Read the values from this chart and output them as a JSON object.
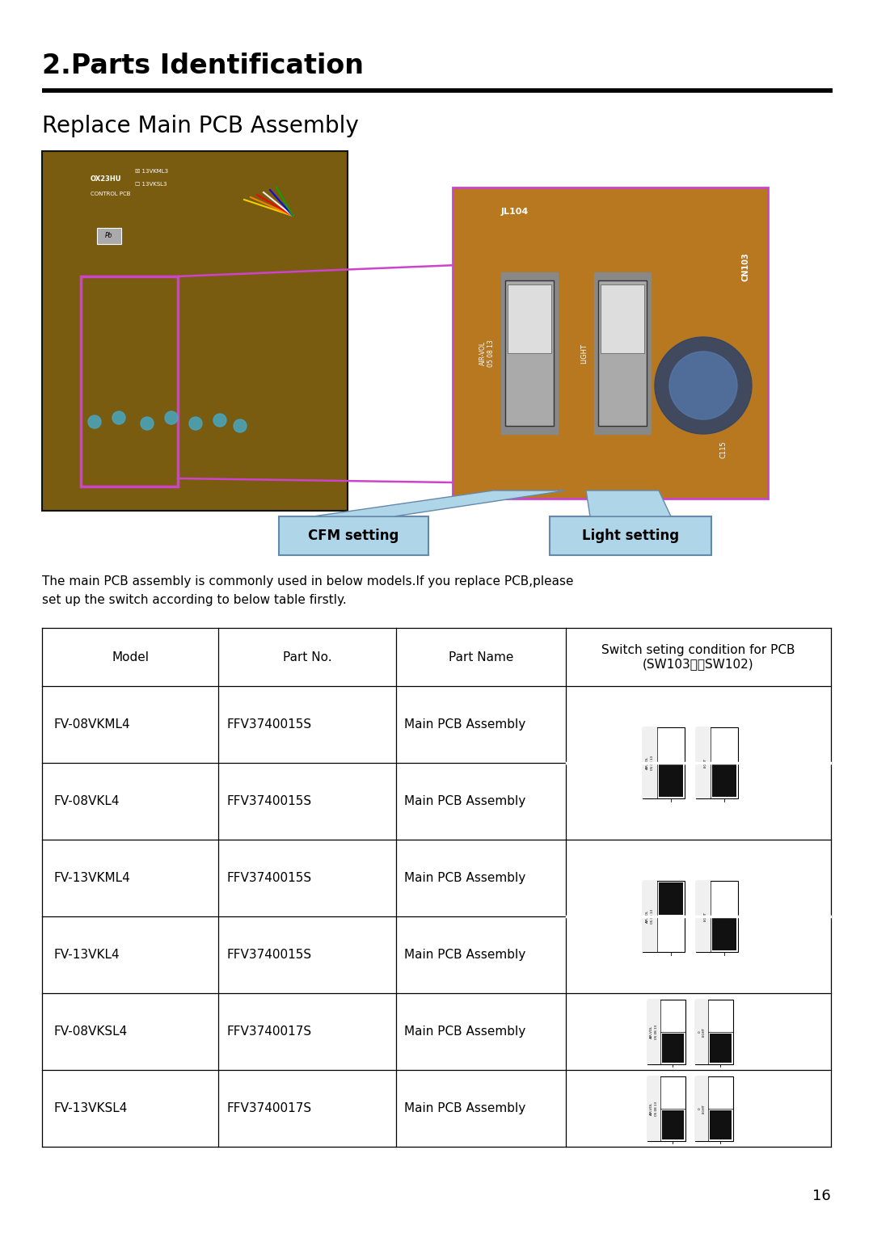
{
  "title": "2.Parts Identification",
  "subtitle": "Replace Main PCB Assembly",
  "description": "The main PCB assembly is commonly used in below models.If you replace PCB,please\nset up the switch according to below table firstly.",
  "cfm_label": "CFM setting",
  "light_label": "Light setting",
  "table_headers": [
    "Model",
    "Part No.",
    "Part Name",
    "Switch seting condition for PCB\n(SW103、　SW102)"
  ],
  "table_rows": [
    [
      "FV-08VKML4",
      "FFV3740015S",
      "Main PCB Assembly",
      "sw_a"
    ],
    [
      "FV-08VKL4",
      "FFV3740015S",
      "Main PCB Assembly",
      ""
    ],
    [
      "FV-13VKML4",
      "FFV3740015S",
      "Main PCB Assembly",
      "sw_b"
    ],
    [
      "FV-13VKL4",
      "FFV3740015S",
      "Main PCB Assembly",
      ""
    ],
    [
      "FV-08VKSL4",
      "FFV3740017S",
      "Main PCB Assembly",
      "sw_c"
    ],
    [
      "FV-13VKSL4",
      "FFV3740017S",
      "Main PCB Assembly",
      "sw_d"
    ]
  ],
  "sw_a_103_black_top": false,
  "sw_a_102_black_top": false,
  "sw_b_103_black_top": true,
  "sw_b_102_black_top": false,
  "sw_c_103_black_top": false,
  "sw_c_102_black_top": false,
  "sw_d_103_black_top": false,
  "sw_d_102_black_top": false,
  "page_number": "16",
  "bg_color": "#ffffff",
  "text_color": "#000000",
  "title_fontsize": 24,
  "subtitle_fontsize": 20,
  "table_fontsize": 11,
  "desc_fontsize": 11,
  "label_bg_color": "#aed6e8",
  "label_border_color": "#6688aa",
  "left_pcb_color": "#7a5c10",
  "right_pcb_color": "#b87820",
  "pink_color": "#cc44cc"
}
